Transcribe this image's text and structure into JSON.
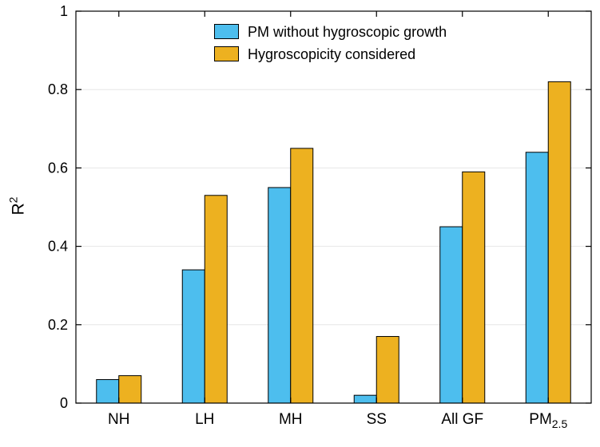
{
  "chart_data": {
    "type": "bar",
    "title": "",
    "xlabel": "",
    "ylabel": {
      "base": "R",
      "sup": "2"
    },
    "ylim": [
      0,
      1
    ],
    "yticks": [
      0,
      0.2,
      0.4,
      0.6,
      0.8,
      1
    ],
    "grid": "horizontal",
    "legend_position": "top-center-inside",
    "categories": [
      {
        "label": "NH"
      },
      {
        "label": "LH"
      },
      {
        "label": "MH"
      },
      {
        "label": "SS"
      },
      {
        "label": "All GF"
      },
      {
        "label": "PM",
        "sub": "2.5"
      }
    ],
    "series": [
      {
        "name": "PM without hygroscopic growth",
        "color": "#4DBEEE",
        "values": [
          0.06,
          0.34,
          0.55,
          0.02,
          0.45,
          0.64
        ]
      },
      {
        "name": "Hygroscopicity considered",
        "color": "#EDB120",
        "values": [
          0.07,
          0.53,
          0.65,
          0.17,
          0.59,
          0.82
        ]
      }
    ],
    "bar_edge_color": "#000000",
    "axis_color": "#000000",
    "grid_color": "#e6e6e6"
  }
}
